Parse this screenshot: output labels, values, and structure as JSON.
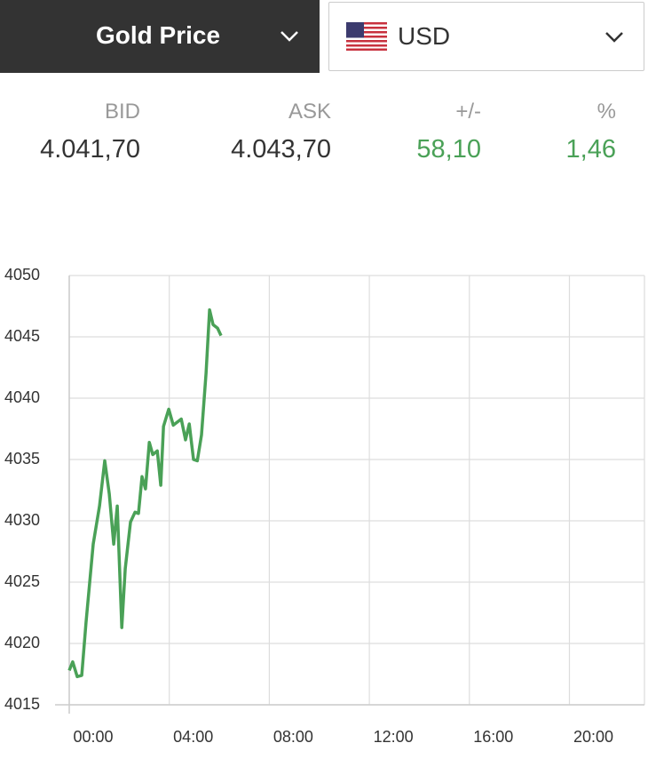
{
  "header": {
    "title": "Gold Price",
    "currency": "USD"
  },
  "quote": {
    "columns": [
      {
        "label": "BID",
        "value": "4.041,70"
      },
      {
        "label": "ASK",
        "value": "4.043,70"
      },
      {
        "label": "+/-",
        "value": "58,10"
      },
      {
        "label": "%",
        "value": "1,46"
      }
    ]
  },
  "chart_data": {
    "type": "line",
    "x": [
      0,
      0.14,
      0.32,
      0.5,
      0.67,
      0.96,
      1.21,
      1.42,
      1.6,
      1.78,
      1.92,
      2.1,
      2.24,
      2.45,
      2.63,
      2.77,
      2.91,
      3.05,
      3.2,
      3.34,
      3.52,
      3.66,
      3.77,
      3.98,
      4.16,
      4.48,
      4.65,
      4.8,
      4.97,
      5.12,
      5.29,
      5.47,
      5.61,
      5.75,
      5.93,
      6.07
    ],
    "series": [
      {
        "color": "#4aa157",
        "values": [
          4017.8,
          4018.5,
          4017.3,
          4017.4,
          4021.7,
          4028.1,
          4031.2,
          4034.9,
          4032.2,
          4028.1,
          4031.2,
          4021.3,
          4026.1,
          4029.9,
          4030.7,
          4030.6,
          4033.6,
          4032.6,
          4036.4,
          4035.4,
          4035.7,
          4032.9,
          4037.7,
          4039.1,
          4037.8,
          4038.3,
          4036.6,
          4037.9,
          4035.0,
          4034.9,
          4037.0,
          4042.0,
          4047.2,
          4046.0,
          4045.7,
          4045.1
        ]
      }
    ],
    "xlim": [
      0,
      23
    ],
    "xticks": [
      {
        "value": 0,
        "label": "00:00"
      },
      {
        "value": 4,
        "label": "04:00"
      },
      {
        "value": 8,
        "label": "08:00"
      },
      {
        "value": 12,
        "label": "12:00"
      },
      {
        "value": 16,
        "label": "16:00"
      },
      {
        "value": 20,
        "label": "20:00"
      }
    ],
    "ylim": [
      4015,
      4050
    ],
    "yticks": [
      4015,
      4020,
      4025,
      4030,
      4035,
      4040,
      4045,
      4050
    ],
    "grid": true
  }
}
